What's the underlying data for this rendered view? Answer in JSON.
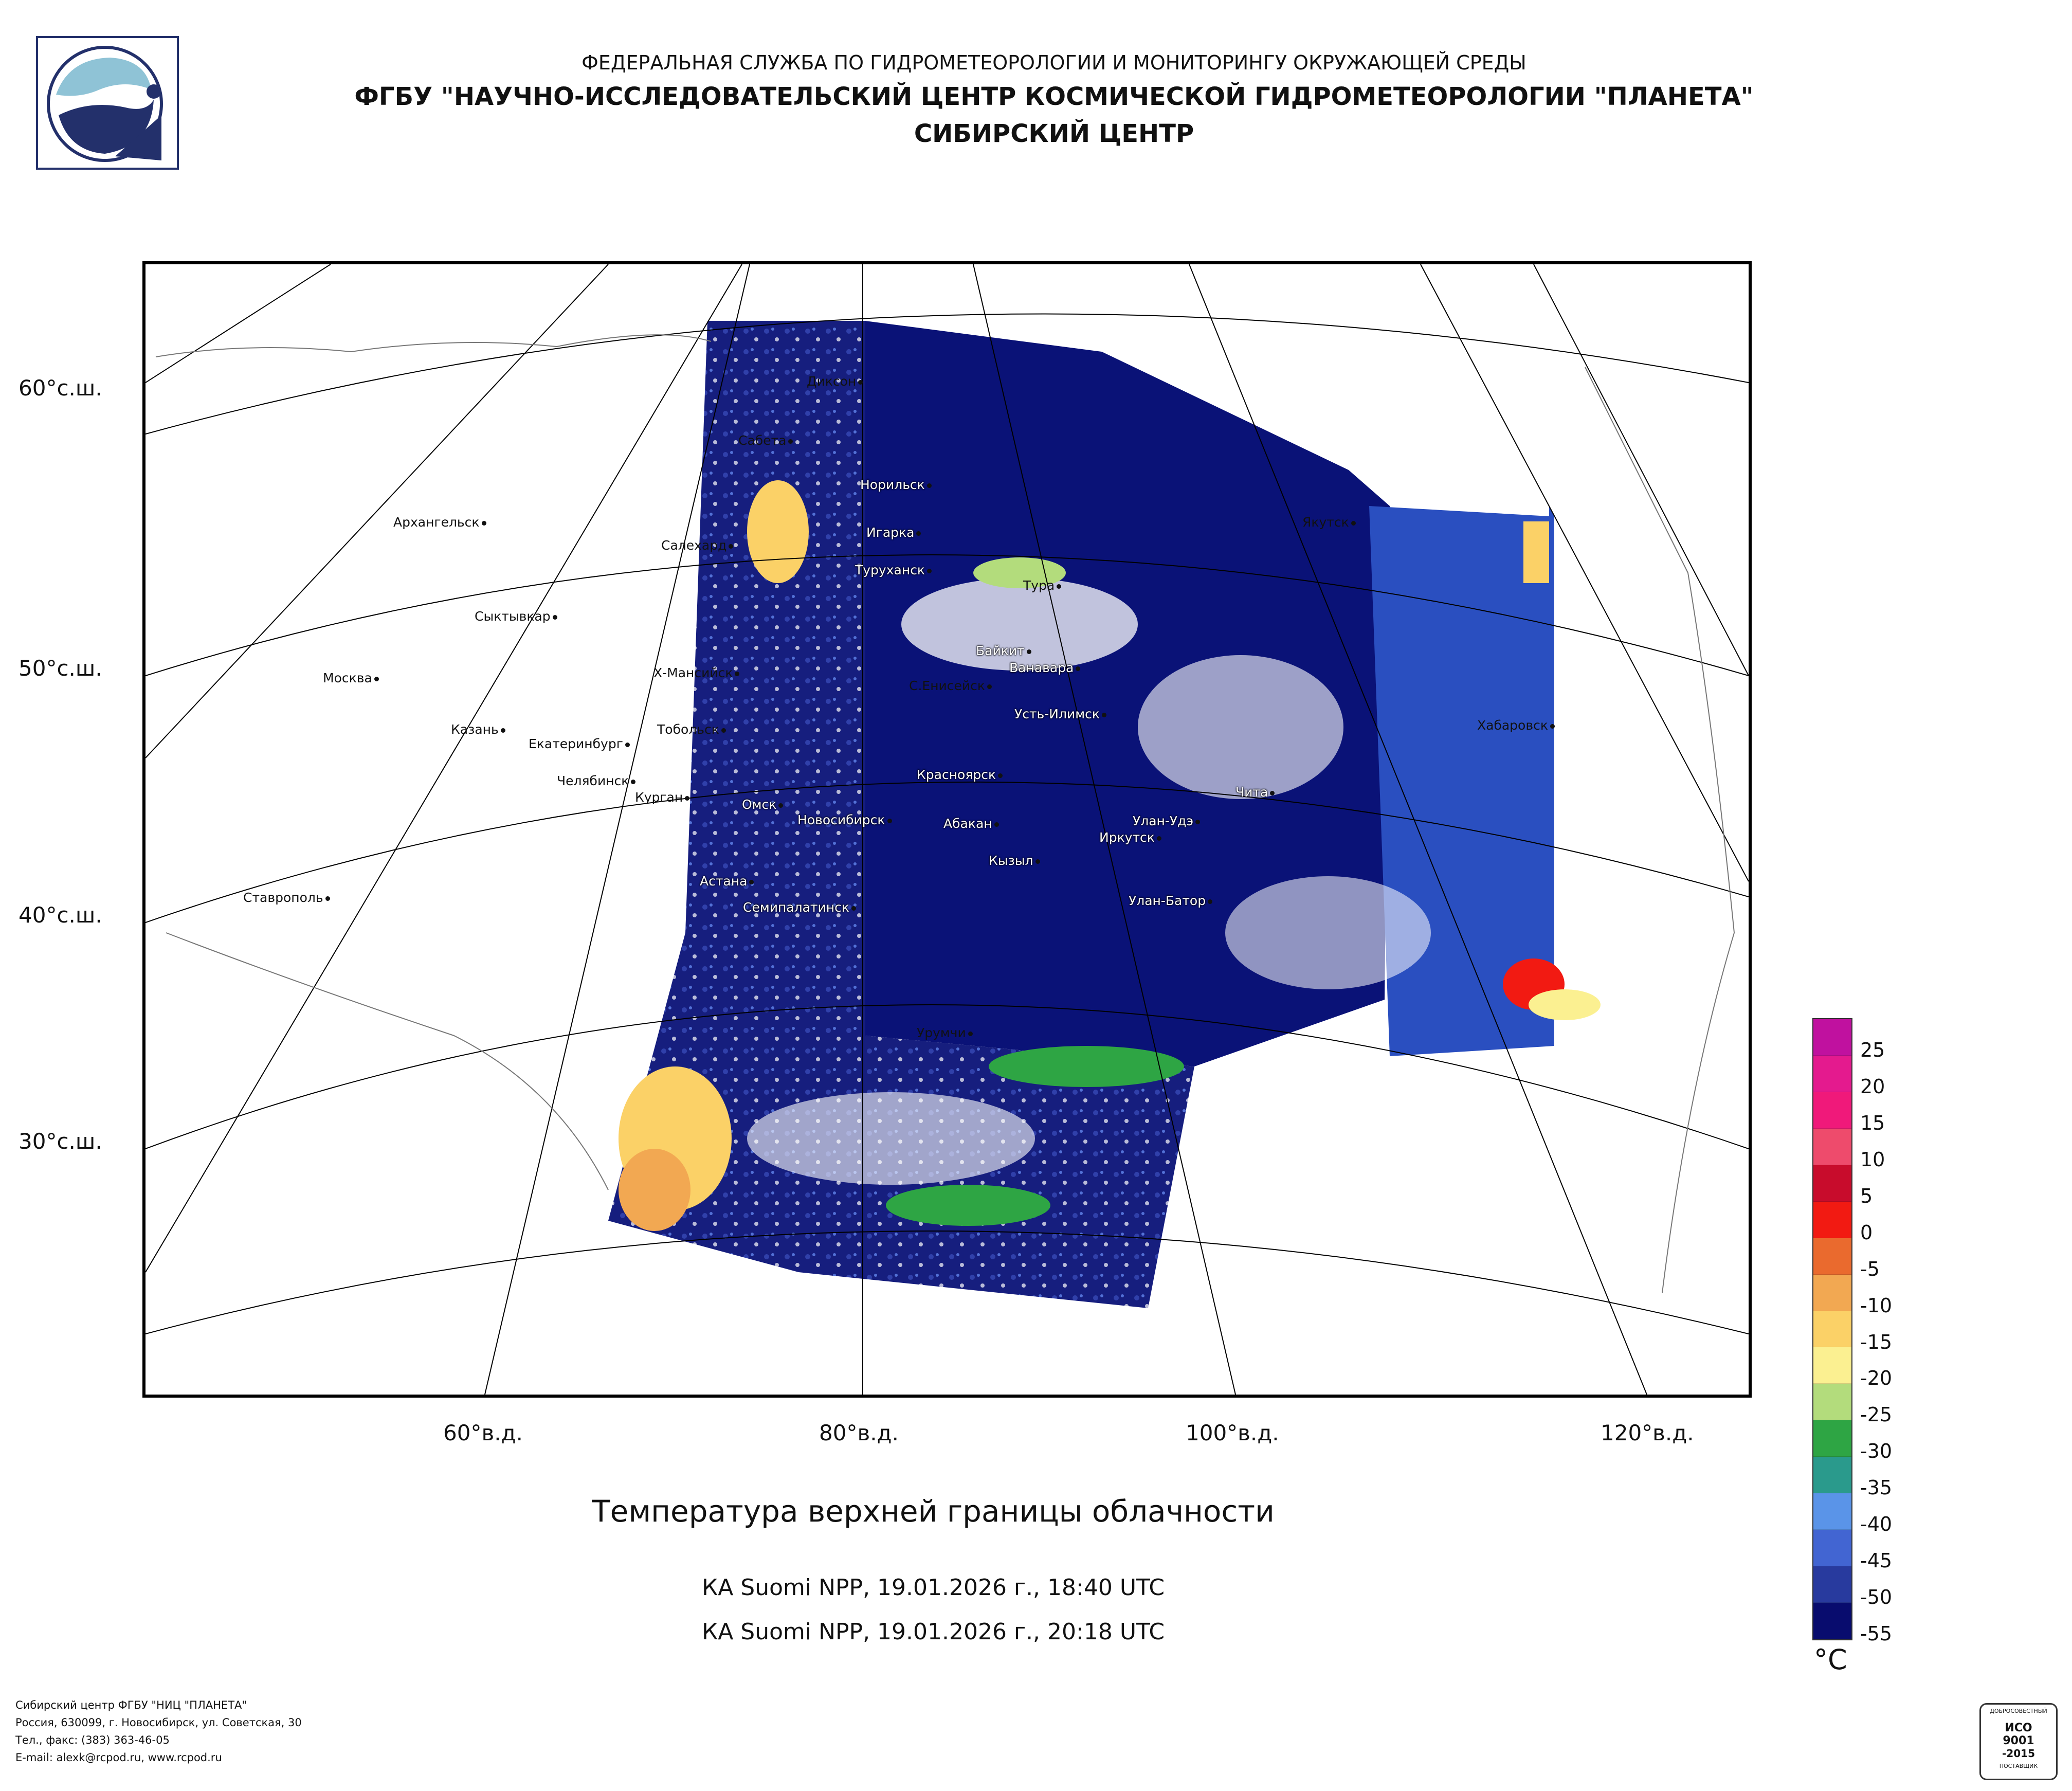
{
  "header": {
    "line1": "ФЕДЕРАЛЬНАЯ СЛУЖБА ПО ГИДРОМЕТЕОРОЛОГИИ И МОНИТОРИНГУ ОКРУЖАЮЩЕЙ СРЕДЫ",
    "line2": "ФГБУ \"НАУЧНО-ИССЛЕДОВАТЕЛЬСКИЙ ЦЕНТР КОСМИЧЕСКОЙ ГИДРОМЕТЕОРОЛОГИИ \"ПЛАНЕТА\"",
    "line3": "СИБИРСКИЙ ЦЕНТР"
  },
  "map": {
    "latitude_labels": [
      "60°с.ш.",
      "50°с.ш.",
      "40°с.ш.",
      "30°с.ш."
    ],
    "longitude_labels": [
      "60°в.д.",
      "80°в.д.",
      "100°в.д.",
      "120°в.д."
    ],
    "cities": [
      "Диксон",
      "Сабета",
      "Норильск",
      "Игарка",
      "Салехард",
      "Туруханск",
      "Тура",
      "Архангельск",
      "Якутск",
      "Сыктывкар",
      "Байкит",
      "Ванавара",
      "Х-Мансийск",
      "С.Енисейск",
      "Москва",
      "Усть-Илимск",
      "Хабаровск",
      "Казань",
      "Тобольск",
      "Екатеринбург",
      "Челябинск",
      "Красноярск",
      "Курган",
      "Омск",
      "Новосибирск",
      "Абакан",
      "Улан-Удэ",
      "Чита",
      "Иркутск",
      "Кызыл",
      "Астана",
      "Ставрополь",
      "Семипалатинск",
      "Улан-Батор",
      "Урумчи"
    ]
  },
  "caption": {
    "title": "Температура верхней границы облачности",
    "pass1": "КА Suomi NPP, 19.01.2026 г., 18:40 UTC",
    "pass2": "КА Suomi NPP, 19.01.2026 г., 20:18 UTC"
  },
  "legend": {
    "unit": "°C",
    "values": [
      "25",
      "20",
      "15",
      "10",
      "5",
      "0",
      "-5",
      "-10",
      "-15",
      "-20",
      "-25",
      "-30",
      "-35",
      "-40",
      "-45",
      "-50",
      "-55"
    ],
    "colors": [
      "#c0119f",
      "#e41a8e",
      "#f0197a",
      "#ee4b6c",
      "#c80c2c",
      "#f21a12",
      "#ea6a2e",
      "#f2a852",
      "#fbd167",
      "#fbf091",
      "#b3dc7c",
      "#2ea544",
      "#2a9a8c",
      "#5a94e8",
      "#4265d2",
      "#283a9e",
      "#080c6e"
    ]
  },
  "footer": {
    "line1": "Сибирский центр ФГБУ \"НИЦ \"ПЛАНЕТА\"",
    "line2": "Россия, 630099, г. Новосибирск, ул. Советская, 30",
    "line3": "Тел., факс: (383) 363-46-05",
    "line4": "E-mail: alexk@rcpod.ru, www.rcpod.ru",
    "badge_top": "ДОБРОСОВЕСТНЫЙ",
    "badge_iso": "ИСО",
    "badge_num": "9001",
    "badge_year": "-2015",
    "badge_bottom": "ПОСТАВЩИК"
  }
}
